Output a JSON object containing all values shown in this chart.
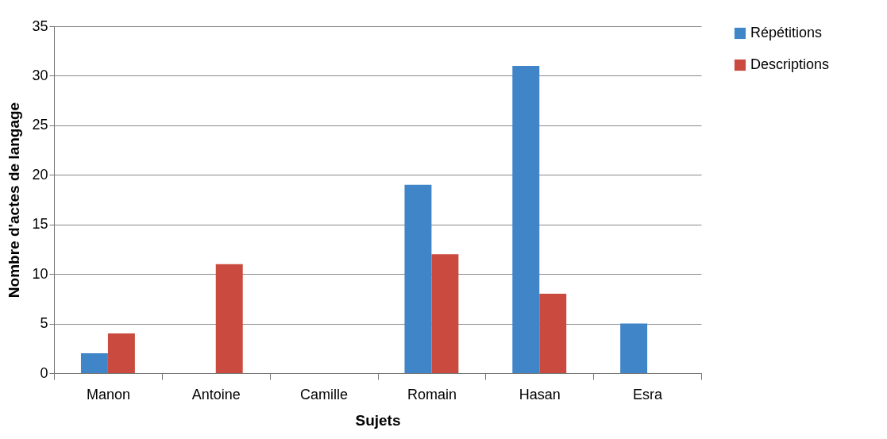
{
  "chart_data": {
    "type": "bar",
    "xlabel": "Sujets",
    "ylabel": "Nombre d'actes de langage",
    "categories": [
      "Manon",
      "Antoine",
      "Camille",
      "Romain",
      "Hasan",
      "Esra"
    ],
    "series": [
      {
        "name": "Répétitions",
        "color": "#3f85c8",
        "values": [
          2,
          0,
          0,
          19,
          31,
          5
        ]
      },
      {
        "name": "Descriptions",
        "color": "#cb4a3f",
        "values": [
          4,
          11,
          0,
          12,
          8,
          0
        ]
      }
    ],
    "ylim": [
      0,
      35
    ],
    "yticks": [
      0,
      5,
      10,
      15,
      20,
      25,
      30,
      35
    ],
    "grid": "y",
    "legend": "right"
  }
}
